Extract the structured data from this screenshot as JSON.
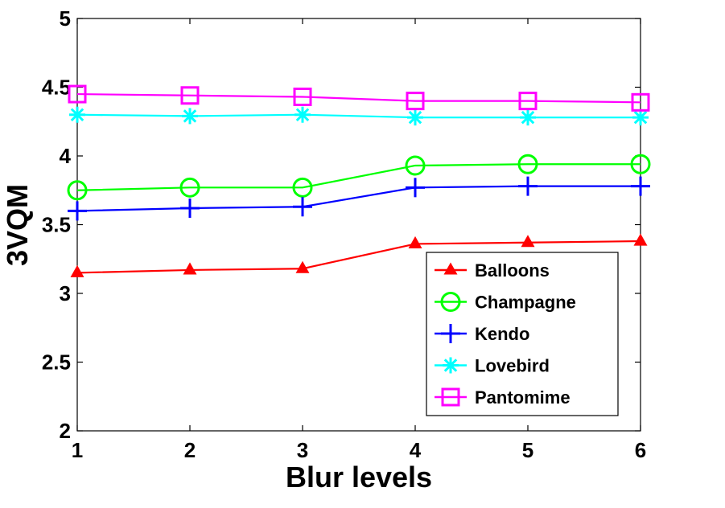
{
  "chart_data": {
    "type": "line",
    "xlabel": "Blur levels",
    "ylabel": "3VQM",
    "x": [
      1,
      2,
      3,
      4,
      5,
      6
    ],
    "xlim": [
      1,
      6
    ],
    "ylim": [
      2,
      5
    ],
    "xticks": [
      "1",
      "2",
      "3",
      "4",
      "5",
      "6"
    ],
    "yticks": [
      "2",
      "2.5",
      "3",
      "3.5",
      "4",
      "4.5",
      "5"
    ],
    "grid": false,
    "legend_position": "bottom-right",
    "series": [
      {
        "name": "Balloons",
        "values": [
          3.15,
          3.17,
          3.18,
          3.36,
          3.37,
          3.38
        ],
        "color": "#ff0000",
        "marker": "triangle"
      },
      {
        "name": "Champagne",
        "values": [
          3.75,
          3.77,
          3.77,
          3.93,
          3.94,
          3.94
        ],
        "color": "#00ff00",
        "marker": "circle"
      },
      {
        "name": "Kendo",
        "values": [
          3.6,
          3.62,
          3.63,
          3.77,
          3.78,
          3.78
        ],
        "color": "#0000ff",
        "marker": "plus"
      },
      {
        "name": "Lovebird",
        "values": [
          4.3,
          4.29,
          4.3,
          4.28,
          4.28,
          4.28
        ],
        "color": "#00ffff",
        "marker": "asterisk"
      },
      {
        "name": "Pantomime",
        "values": [
          4.45,
          4.44,
          4.43,
          4.4,
          4.4,
          4.39
        ],
        "color": "#ff00ff",
        "marker": "square"
      }
    ]
  }
}
